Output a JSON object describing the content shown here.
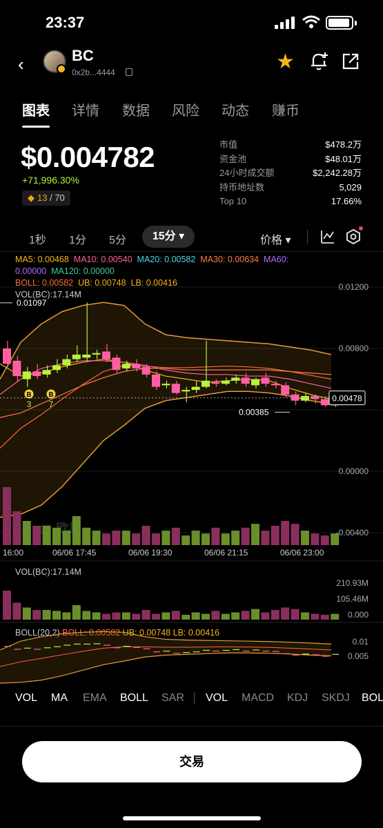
{
  "status": {
    "time": "23:37"
  },
  "header": {
    "name": "BC",
    "address": "0x2b...4444"
  },
  "tabs": [
    "图表",
    "详情",
    "数据",
    "风险",
    "动态",
    "赚币"
  ],
  "price": {
    "value": "$0.004782",
    "change": "+71,996.30%",
    "rank_current": "13",
    "rank_total": "/ 70"
  },
  "stats": [
    {
      "k": "市值",
      "v": "$478.2万"
    },
    {
      "k": "资金池",
      "v": "$48.01万"
    },
    {
      "k": "24小时成交额",
      "v": "$2,242.28万"
    },
    {
      "k": "持币地址数",
      "v": "5,029"
    },
    {
      "k": "Top 10",
      "v": "17.66%"
    }
  ],
  "intervals": [
    "1秒",
    "1分",
    "5分",
    "15分"
  ],
  "price_dropdown": "价格",
  "ma": {
    "ma5": "MA5: 0.00468",
    "ma10": "MA10: 0.00540",
    "ma20": "MA20: 0.00582",
    "ma30": "MA30: 0.00634",
    "ma60": "MA60:",
    "ma60v": "0.00000",
    "ma120": "MA120: 0.00000",
    "boll": "BOLL: 0.00582",
    "ub": "UB: 0.00748",
    "lb": "LB: 0.00416",
    "vol": "VOL(BC):17.14M"
  },
  "chart_data": {
    "type": "candlestick",
    "y_ticks": [
      "0.01200",
      "0.00800",
      "0.00400",
      "0.00000",
      "-0.00400"
    ],
    "x_ticks": [
      "16:00",
      "06/06 17:45",
      "06/06 19:30",
      "06/06 21:15",
      "06/06 23:00"
    ],
    "high_label": "0.01097",
    "low_label": "0.00385",
    "current_label": "0.00478",
    "buy_markers": [
      "3",
      "7"
    ],
    "vol_ticks": [
      "210.93M",
      "105.46M",
      "0.000"
    ],
    "vol_title": "VOL(BC):17.14M",
    "boll_title": "BOLL(20,2)",
    "boll": "BOLL: 0.00582",
    "ub": "UB: 0.00748",
    "lb": "LB: 0.00416",
    "boll_ticks": [
      "0.01",
      "0.005"
    ],
    "colors": {
      "up": "#b8f23a",
      "down": "#ff5fa2",
      "boll_band": "#e89b3a"
    }
  },
  "watermark": "欧易",
  "toolbar_left": [
    "VOL",
    "MA",
    "EMA",
    "BOLL",
    "SAR"
  ],
  "toolbar_right": [
    "VOL",
    "MACD",
    "KDJ",
    "SKDJ",
    "BOL"
  ],
  "trade_button": "交易"
}
